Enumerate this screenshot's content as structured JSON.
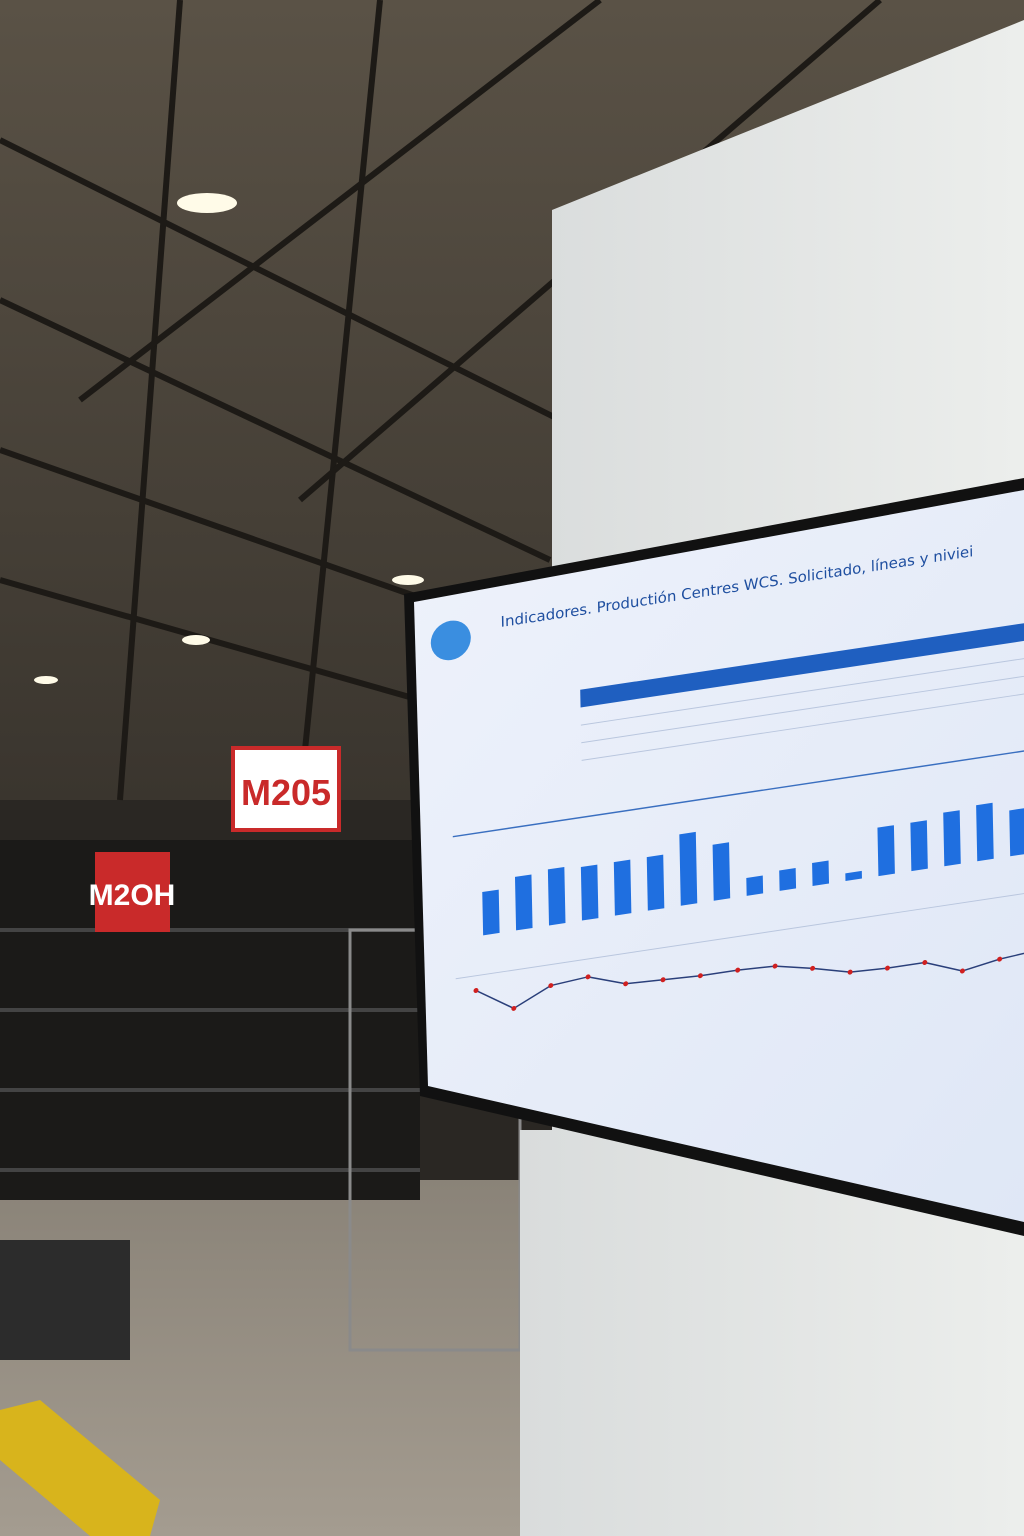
{
  "signs": [
    "M205",
    "M2OH"
  ],
  "screen": {
    "title": "Indicadores. Productión Centres WCS. Solicitado, líneas y niviei",
    "bars": [
      34,
      42,
      44,
      42,
      42,
      42,
      56,
      44,
      14,
      16,
      18,
      6,
      38,
      38,
      42,
      44,
      36
    ],
    "line": [
      100,
      70,
      92,
      96,
      80,
      78,
      76,
      76,
      74,
      64,
      52,
      50,
      50,
      32,
      40,
      44
    ]
  }
}
